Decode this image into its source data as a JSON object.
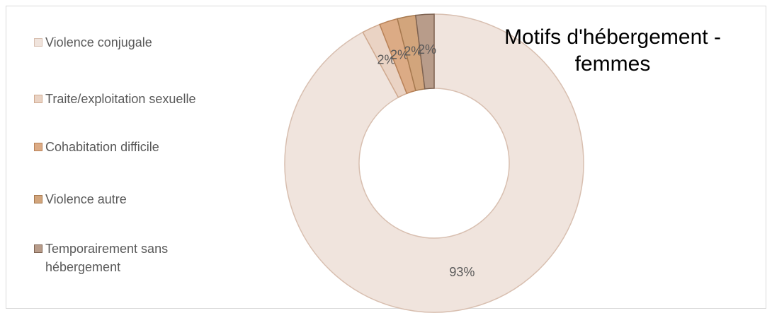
{
  "chart_data": {
    "type": "donut",
    "title": "Motifs d'hébergement - femmes",
    "categories": [
      "Violence conjugale",
      "Traite/exploitation sexuelle",
      "Cohabitation difficile",
      "Violence autre",
      "Temporairement sans hébergement"
    ],
    "values": [
      93,
      2,
      2,
      2,
      2
    ],
    "value_labels": [
      "93%",
      "2%",
      "2%",
      "2%",
      "2%"
    ],
    "colors": [
      "#f0e4dd",
      "#ead3c4",
      "#dcab85",
      "#d2a57c",
      "#b89c8a"
    ],
    "edge_colors": [
      "#d8bfb0",
      "#cfa98f",
      "#b98258",
      "#a6794f",
      "#7e6352"
    ],
    "legend": "left"
  }
}
